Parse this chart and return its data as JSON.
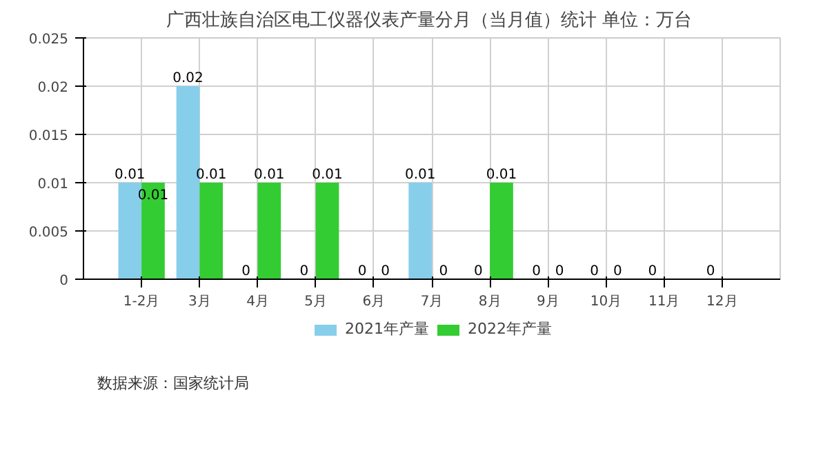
{
  "chart_data": {
    "type": "bar",
    "title": "广西壮族自治区电工仪器仪表产量分月（当月值）统计  单位：万台",
    "categories": [
      "1-2月",
      "3月",
      "4月",
      "5月",
      "6月",
      "7月",
      "8月",
      "9月",
      "10月",
      "11月",
      "12月"
    ],
    "series": [
      {
        "name": "2021年产量",
        "color": "#87ceeb",
        "values": [
          0.01,
          0.02,
          0,
          0,
          0,
          0.01,
          0,
          0,
          0,
          0,
          0
        ]
      },
      {
        "name": "2022年产量",
        "color": "#33cc33",
        "values": [
          0.01,
          0.01,
          0.01,
          0.01,
          0,
          0,
          0.01,
          0,
          0,
          null,
          null
        ]
      }
    ],
    "ylim": [
      0,
      0.025
    ],
    "yticks": [
      0,
      0.005,
      0.01,
      0.015,
      0.02,
      0.025
    ],
    "grid": true,
    "data_labels": true,
    "legend": "bottom",
    "annotations": [
      "数据来源：国家统计局"
    ]
  }
}
